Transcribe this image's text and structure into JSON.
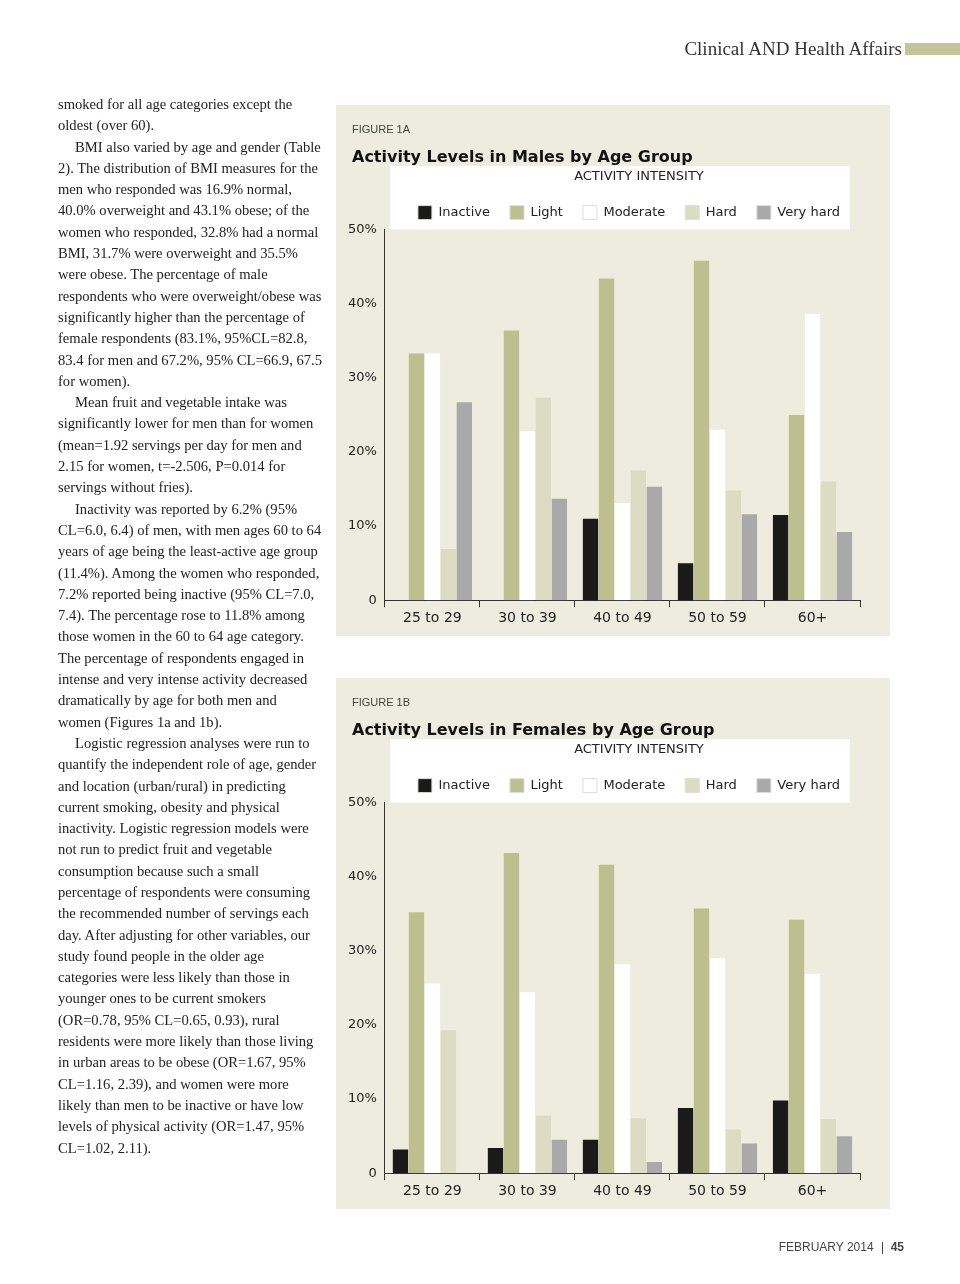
{
  "chart_data": [
    {
      "type": "bar",
      "subtitle": "FIGURE 1A",
      "title": "Activity Levels in Males by Age Group",
      "legend_title": "ACTIVITY INTENSITY",
      "legend": "top",
      "grid": false,
      "categories": [
        "25 to 29",
        "30 to 39",
        "40 to 49",
        "50 to 59",
        "60+"
      ],
      "ylim": [
        0,
        50
      ],
      "yticks": [
        0,
        {
          "value": 10,
          "label": "10%"
        },
        {
          "value": 20,
          "label": "20%"
        },
        {
          "value": 30,
          "label": "30%"
        },
        {
          "value": 40,
          "label": "40%"
        },
        {
          "value": 50,
          "label": "50%"
        }
      ],
      "series": [
        {
          "name": "Inactive",
          "color": "#1a1a18",
          "values": [
            0,
            0,
            11.0,
            5.0,
            11.5
          ]
        },
        {
          "name": "Light",
          "color": "#bdc08e",
          "values": [
            33.3,
            36.4,
            43.4,
            45.8,
            25.0
          ]
        },
        {
          "name": "Moderate",
          "color": "#ffffff",
          "values": [
            33.3,
            22.8,
            13.1,
            23.0,
            38.6
          ]
        },
        {
          "name": "Hard",
          "color": "#dcdcc2",
          "values": [
            6.9,
            27.3,
            17.5,
            14.8,
            16.0
          ]
        },
        {
          "name": "Very hard",
          "color": "#a9a9a9",
          "values": [
            26.7,
            13.7,
            15.3,
            11.6,
            9.2
          ]
        }
      ],
      "annotations": [
        "Clinical AND Health Affairs",
        "smoked for all age categories except the oldest (over 60).",
        "BMI also varied by age and gender (Table 2). The distribution of BMI measures for the men who responded was 16.9% normal, 40.0% overweight and 43.1% obese; of the women who responded, 32.8% had a normal BMI, 31.7% were overweight and 35.5% were obese. The percentage of male respondents who were overweight/obese was significantly higher than the percentage of female respondents (83.1%, 95%CL=82.8, 83.4 for men and 67.2%, 95% CL=66.9, 67.5 for women).",
        "Mean fruit and vegetable intake was significantly lower for men than for women (mean=1.92 servings per day for men and 2.15 for women, t=-2.506, P=0.014 for servings without fries).",
        "Inactivity was reported by 6.2% (95% CL=6.0, 6.4) of men, with men ages 60 to 64 years of age being the least-active age group (11.4%). Among the women who responded, 7.2% reported being inactive (95% CL=7.0, 7.4). The percentage rose to 11.8% among those women in the 60 to 64 age category. The percentage of respondents engaged in intense and very intense activity decreased dramatically by age for both men and women (Figures 1a and 1b).",
        "Logistic regression analyses were run to quantify the independent role of age, gender and location (urban/rural) in predicting current smoking, obesity and physical inactivity. Logistic regression models were not run to predict fruit and vegetable consumption because such a small percentage of respondents were consuming the recommended number of servings each day. After adjusting for other variables, our study found people in the older age categories were less likely than those in younger ones to be current smokers (OR=0.78, 95% CL=0.65, 0.93), rural residents were more likely than those living in urban areas to be obese (OR=1.67, 95% CL=1.16, 2.39), and women were more likely than men to be inactive or have low levels of physical activity (OR=1.47, 95% CL=1.02, 2.11).",
        "FEBRUARY 2014",
        "45"
      ]
    },
    {
      "type": "bar",
      "subtitle": "FIGURE 1B",
      "title": "Activity Levels in Females by Age Group",
      "legend_title": "ACTIVITY INTENSITY",
      "legend": "top",
      "grid": false,
      "categories": [
        "25 to 29",
        "30 to 39",
        "40 to 49",
        "50 to 59",
        "60+"
      ],
      "ylim": [
        0,
        50
      ],
      "yticks": [
        0,
        {
          "value": 10,
          "label": "10%"
        },
        {
          "value": 20,
          "label": "20%"
        },
        {
          "value": 30,
          "label": "30%"
        },
        {
          "value": 40,
          "label": "40%"
        },
        {
          "value": 50,
          "label": "50%"
        }
      ],
      "series": [
        {
          "name": "Inactive",
          "color": "#1a1a18",
          "values": [
            3.2,
            3.4,
            4.5,
            8.8,
            9.8
          ]
        },
        {
          "name": "Light",
          "color": "#bdc08e",
          "values": [
            35.2,
            43.2,
            41.6,
            35.7,
            34.2
          ]
        },
        {
          "name": "Moderate",
          "color": "#ffffff",
          "values": [
            25.6,
            24.4,
            28.2,
            29.0,
            26.9
          ]
        },
        {
          "name": "Hard",
          "color": "#dcdcc2",
          "values": [
            19.3,
            7.8,
            7.4,
            5.9,
            7.3
          ]
        },
        {
          "name": "Very hard",
          "color": "#a9a9a9",
          "values": [
            0,
            4.5,
            1.5,
            4.0,
            5.0
          ]
        }
      ]
    }
  ]
}
